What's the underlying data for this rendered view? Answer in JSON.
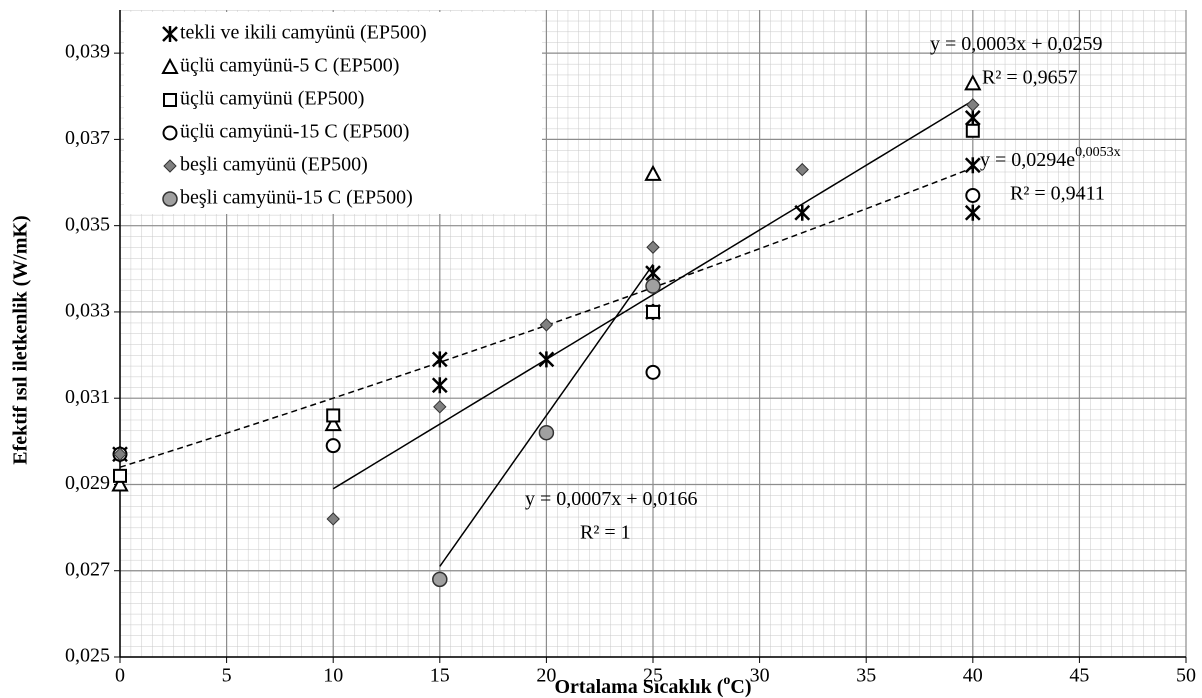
{
  "chart_data": {
    "type": "scatter",
    "xlabel": [
      "Ortalama Sıcaklık (",
      "o",
      "C)"
    ],
    "ylabel": "Efektif ısıl iletkenlik  (W/mK)",
    "xlim": [
      0,
      50
    ],
    "xticks": [
      0,
      5,
      10,
      15,
      20,
      25,
      30,
      35,
      40,
      45,
      50
    ],
    "ylim": [
      0.025,
      0.04
    ],
    "yticks": [
      {
        "value": 0.025,
        "label": "0,025"
      },
      {
        "value": 0.027,
        "label": "0,027"
      },
      {
        "value": 0.029,
        "label": "0,029"
      },
      {
        "value": 0.031,
        "label": "0,031"
      },
      {
        "value": 0.033,
        "label": "0,033"
      },
      {
        "value": 0.035,
        "label": "0,035"
      },
      {
        "value": 0.037,
        "label": "0,037"
      },
      {
        "value": 0.039,
        "label": "0,039"
      }
    ],
    "grid": true,
    "legend": "upper left",
    "series": [
      {
        "name": "tekli ve ikili camyünü (EP500)",
        "marker": "asterisk",
        "color": "#000000",
        "x": [
          0,
          15,
          15,
          20,
          25,
          25,
          32,
          40,
          40,
          40
        ],
        "values": [
          0.0297,
          0.0319,
          0.0313,
          0.0319,
          0.0339,
          0.033,
          0.0353,
          0.0364,
          0.0353,
          0.0375
        ]
      },
      {
        "name": "üçlü camyünü-5 C (EP500)",
        "marker": "triangle",
        "color": "#000000",
        "x": [
          0,
          10,
          25,
          40
        ],
        "values": [
          0.029,
          0.0304,
          0.0362,
          0.0383
        ]
      },
      {
        "name": "üçlü camyünü (EP500)",
        "marker": "square",
        "color": "#000000",
        "x": [
          0,
          10,
          25,
          40
        ],
        "values": [
          0.0292,
          0.0306,
          0.033,
          0.0372
        ]
      },
      {
        "name": "üçlü camyünü-15 C (EP500)",
        "marker": "circle",
        "color": "#000000",
        "x": [
          0,
          10,
          25,
          40
        ],
        "values": [
          0.0297,
          0.0299,
          0.0316,
          0.0357
        ]
      },
      {
        "name": "beşli camyünü (EP500)",
        "marker": "diamond",
        "color": "#808080",
        "x": [
          0,
          10,
          15,
          20,
          25,
          32,
          40
        ],
        "values": [
          0.0297,
          0.0282,
          0.0308,
          0.0327,
          0.0345,
          0.0363,
          0.0378
        ]
      },
      {
        "name": "beşli camyünü-15 C (EP500)",
        "marker": "filled-circle",
        "color": "#a0a0a0",
        "x": [
          15,
          20,
          25
        ],
        "values": [
          0.0268,
          0.0302,
          0.0336
        ]
      }
    ],
    "trendlines": [
      {
        "kind": "linear",
        "a": 0.0003,
        "b": 0.0259,
        "x_from": 10,
        "x_to": 40,
        "dashed": false,
        "equation": [
          "y = 0,0003x + 0,0259"
        ],
        "r2": "R² = 0,9657"
      },
      {
        "kind": "exponential",
        "a": 0.0294,
        "b": 0.0053,
        "x_from": 0,
        "x_to": 40,
        "dashed": true,
        "equation": [
          "y = 0,0294e",
          "0,0053x"
        ],
        "r2": "R² = 0,9411"
      },
      {
        "kind": "linear",
        "a": 0.0007,
        "b": 0.0166,
        "x_from": 15,
        "x_to": 25,
        "dashed": false,
        "equation": [
          "y = 0,0007x + 0,0166"
        ],
        "r2": "R² = 1"
      }
    ]
  }
}
